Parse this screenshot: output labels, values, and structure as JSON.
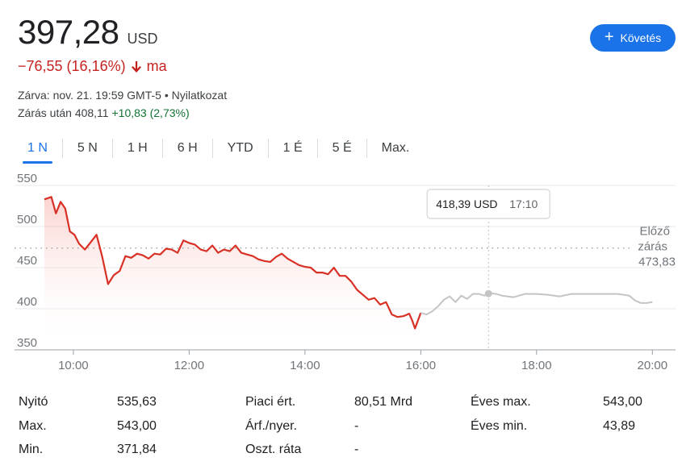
{
  "quote": {
    "price": "397,28",
    "currency": "USD",
    "change": "−76,55 (16,16%)",
    "change_suffix": "ma",
    "closed_info": "Zárva: nov. 21. 19:59 GMT-5 • Nyilatkozat",
    "after_hours_label": "Zárás után 408,11",
    "after_hours_change": "+10,83 (2,73%)"
  },
  "follow_button": {
    "label": "Követés"
  },
  "tabs": [
    {
      "label": "1 N",
      "active": true
    },
    {
      "label": "5 N",
      "active": false
    },
    {
      "label": "1 H",
      "active": false
    },
    {
      "label": "6 H",
      "active": false
    },
    {
      "label": "YTD",
      "active": false
    },
    {
      "label": "1 É",
      "active": false
    },
    {
      "label": "5 É",
      "active": false
    },
    {
      "label": "Max.",
      "active": false
    }
  ],
  "colors": {
    "down": "#d93025",
    "after_hours_line": "#c4c4c4",
    "accent": "#1a73e8",
    "positive": "#137333"
  },
  "chart_data": {
    "type": "line",
    "yticks": [
      350,
      400,
      450,
      500,
      550
    ],
    "ylim": [
      350,
      550
    ],
    "xlim": [
      9.5,
      20.4
    ],
    "xtick_values": [
      10,
      12,
      14,
      16,
      18,
      20
    ],
    "xtick_labels": [
      "10:00",
      "12:00",
      "14:00",
      "16:00",
      "18:00",
      "20:00"
    ],
    "previous_close": {
      "value": 473.83,
      "label_line1": "Előző",
      "label_line2": "zárás",
      "label_value": "473,83"
    },
    "tooltip": {
      "value": "418,39 USD",
      "time": "17:10",
      "x": 17.17,
      "y": 418.39
    },
    "series": [
      {
        "session": "regular",
        "x": [
          9.5,
          9.62,
          9.7,
          9.78,
          9.86,
          9.94,
          10.02,
          10.1,
          10.2,
          10.3,
          10.4,
          10.5,
          10.6,
          10.7,
          10.8,
          10.9,
          11.0,
          11.1,
          11.2,
          11.3,
          11.4,
          11.5,
          11.6,
          11.7,
          11.8,
          11.9,
          12.0,
          12.1,
          12.2,
          12.3,
          12.4,
          12.5,
          12.6,
          12.7,
          12.8,
          12.9,
          13.0,
          13.1,
          13.2,
          13.3,
          13.4,
          13.5,
          13.6,
          13.7,
          13.8,
          13.9,
          14.0,
          14.1,
          14.2,
          14.3,
          14.4,
          14.5,
          14.6,
          14.7,
          14.8,
          14.9,
          15.0,
          15.1,
          15.2,
          15.3,
          15.4,
          15.5,
          15.6,
          15.7,
          15.8,
          15.85,
          15.9,
          16.0
        ],
        "y": [
          533,
          536,
          516,
          530,
          522,
          494,
          490,
          479,
          472,
          481,
          490,
          463,
          430,
          441,
          446,
          464,
          462,
          467,
          465,
          461,
          467,
          466,
          473,
          472,
          468,
          483,
          480,
          478,
          472,
          470,
          477,
          468,
          472,
          470,
          477,
          468,
          466,
          464,
          460,
          458,
          457,
          463,
          467,
          461,
          457,
          453,
          451,
          450,
          444,
          444,
          442,
          450,
          440,
          440,
          433,
          423,
          417,
          411,
          413,
          405,
          408,
          393,
          390,
          391,
          394,
          386,
          376,
          395
        ]
      },
      {
        "session": "after_hours",
        "x": [
          16.0,
          16.1,
          16.2,
          16.3,
          16.4,
          16.5,
          16.6,
          16.7,
          16.8,
          16.9,
          17.0,
          17.1,
          17.2,
          17.3,
          17.4,
          17.6,
          17.8,
          18.0,
          18.2,
          18.4,
          18.6,
          18.8,
          19.0,
          19.2,
          19.4,
          19.6,
          19.7,
          19.8,
          19.9,
          20.0
        ],
        "y": [
          395,
          393,
          397,
          403,
          411,
          415,
          408,
          416,
          412,
          418,
          418,
          416,
          419,
          418,
          416,
          414,
          418,
          418,
          417,
          415,
          418,
          418,
          418,
          418,
          418,
          416,
          410,
          407,
          407,
          408
        ]
      }
    ]
  },
  "stats": [
    {
      "label": "Nyitó",
      "value": "535,63"
    },
    {
      "label": "Max.",
      "value": "543,00"
    },
    {
      "label": "Min.",
      "value": "371,84"
    },
    {
      "label": "Piaci ért.",
      "value": "80,51 Mrd"
    },
    {
      "label": "Árf./nyer.",
      "value": "-"
    },
    {
      "label": "Oszt. ráta",
      "value": "-"
    },
    {
      "label": "Éves max.",
      "value": "543,00"
    },
    {
      "label": "Éves min.",
      "value": "43,89"
    }
  ]
}
